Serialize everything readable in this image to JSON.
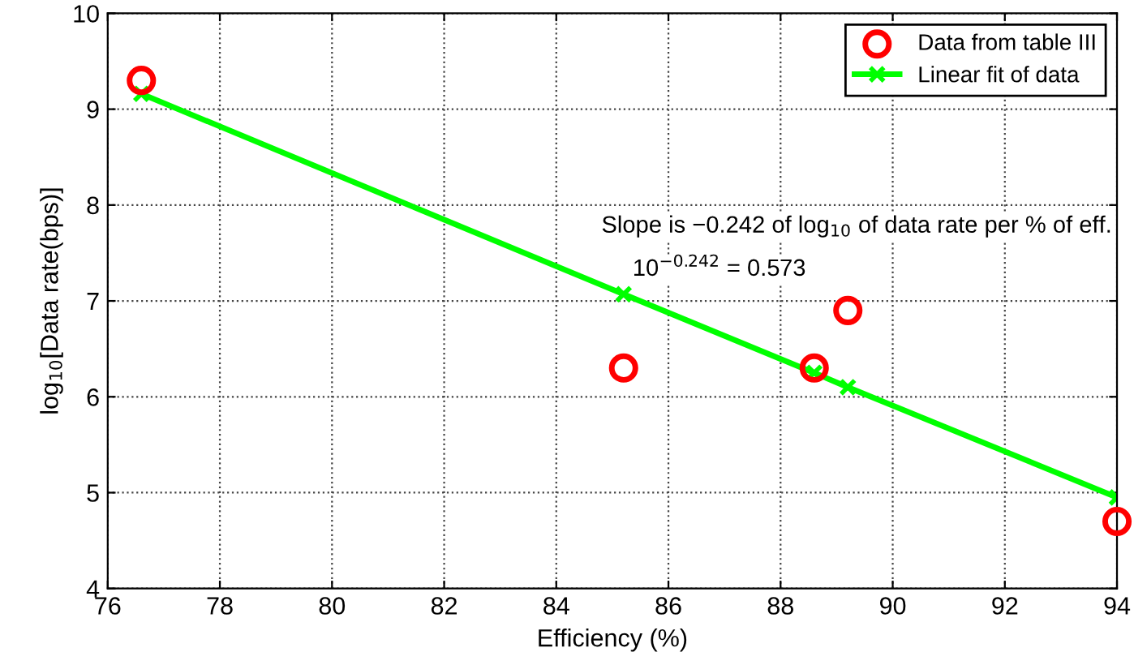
{
  "chart_data": {
    "type": "scatter",
    "xlabel": "Efficiency (%)",
    "ylabel": "log$_{10}$[Data rate(bps)]",
    "xlim": [
      76,
      94
    ],
    "xticks": [
      76,
      78,
      80,
      82,
      84,
      86,
      88,
      90,
      92,
      94
    ],
    "ylim": [
      4,
      10
    ],
    "yticks": [
      4,
      5,
      6,
      7,
      8,
      9,
      10
    ],
    "grid": true,
    "legend": "top right",
    "series": [
      {
        "name": "Data from table III",
        "marker": "circle",
        "color": "#ff0000",
        "x": [
          76.6,
          85.2,
          88.6,
          89.2,
          94.0
        ],
        "values": [
          9.3,
          6.3,
          6.3,
          6.9,
          4.7
        ]
      },
      {
        "name": "Linear fit of data",
        "type": "line",
        "marker": "cross",
        "color": "#00ff00",
        "x": [
          76.6,
          85.2,
          88.6,
          89.2,
          94.0
        ],
        "values": [
          9.16,
          7.07,
          6.25,
          6.1,
          4.95
        ]
      }
    ],
    "annotations": [
      "Slope is −0.242 of log$_{10}$ of data rate per % of eff.",
      "10$^{−0.242}$ = 0.573"
    ]
  }
}
